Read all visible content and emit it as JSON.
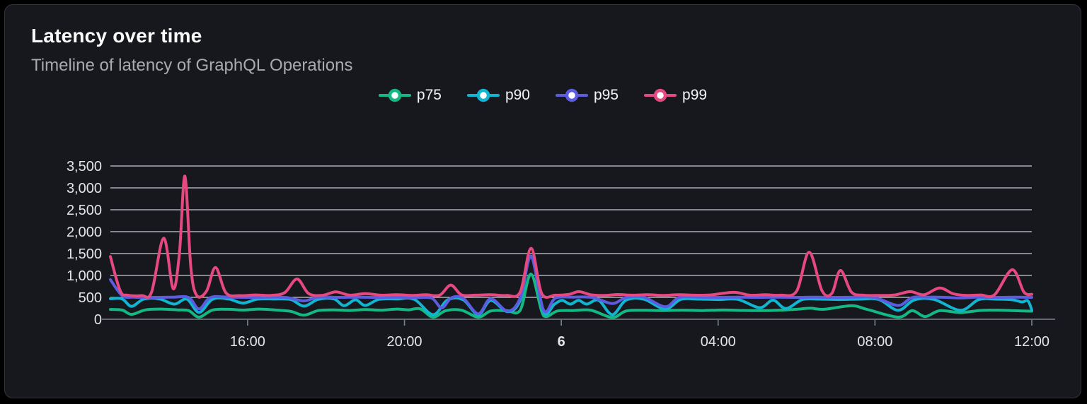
{
  "card": {
    "title": "Latency over time",
    "subtitle": "Timeline of latency of GraphQL Operations"
  },
  "colors": {
    "page_background": "#000000",
    "card_background": "#16181d",
    "card_border": "#32353b",
    "title_text": "#fafafa",
    "subtitle_text": "#a9abb1",
    "axis_label_text": "#e3e5e9",
    "gridline": "#c9cdd5",
    "axis_line": "#7e838b",
    "legend_marker_fill": "#ffffff",
    "series": {
      "p75": "#14b882",
      "p90": "#10b5d2",
      "p95": "#5c5ce0",
      "p99": "#e64980"
    }
  },
  "chart_data": {
    "type": "line",
    "title": "Latency over time",
    "subtitle": "Timeline of latency of GraphQL Operations",
    "xlabel": "",
    "ylabel": "",
    "ylim": [
      0,
      3500
    ],
    "yticks": [
      0,
      500,
      1000,
      1500,
      2000,
      2500,
      3000,
      3500
    ],
    "ytick_labels": [
      "0",
      "500",
      "1,000",
      "1,500",
      "2,000",
      "2,500",
      "3,000",
      "3,500"
    ],
    "grid": "horizontal",
    "legend_position": "top-center",
    "x_axis": {
      "unit": "hours-from-start (start ≈ 12:30 day 5)",
      "start": 0,
      "end": 23.5,
      "ticks": [
        {
          "t": 3.5,
          "label": "16:00",
          "bold": false
        },
        {
          "t": 7.5,
          "label": "20:00",
          "bold": false
        },
        {
          "t": 11.5,
          "label": "6",
          "bold": true
        },
        {
          "t": 15.5,
          "label": "04:00",
          "bold": false
        },
        {
          "t": 19.5,
          "label": "08:00",
          "bold": false
        },
        {
          "t": 23.5,
          "label": "12:00",
          "bold": false
        }
      ]
    },
    "series": [
      {
        "name": "p75",
        "color_key": "p75",
        "points": [
          [
            0,
            225
          ],
          [
            0.3,
            210
          ],
          [
            0.54,
            112
          ],
          [
            0.9,
            215
          ],
          [
            1.3,
            232
          ],
          [
            1.7,
            215
          ],
          [
            2.0,
            195
          ],
          [
            2.26,
            48
          ],
          [
            2.6,
            208
          ],
          [
            3.0,
            228
          ],
          [
            3.4,
            210
          ],
          [
            3.8,
            232
          ],
          [
            4.2,
            212
          ],
          [
            4.6,
            180
          ],
          [
            4.94,
            92
          ],
          [
            5.3,
            198
          ],
          [
            5.7,
            215
          ],
          [
            6.1,
            200
          ],
          [
            6.5,
            222
          ],
          [
            6.9,
            208
          ],
          [
            7.3,
            232
          ],
          [
            7.6,
            215
          ],
          [
            7.9,
            238
          ],
          [
            8.23,
            48
          ],
          [
            8.55,
            195
          ],
          [
            8.95,
            208
          ],
          [
            9.38,
            48
          ],
          [
            9.7,
            188
          ],
          [
            10.1,
            198
          ],
          [
            10.45,
            205
          ],
          [
            10.73,
            1030
          ],
          [
            11.05,
            78
          ],
          [
            11.4,
            188
          ],
          [
            11.8,
            198
          ],
          [
            12.25,
            208
          ],
          [
            12.8,
            42
          ],
          [
            13.15,
            188
          ],
          [
            13.6,
            205
          ],
          [
            14.1,
            198
          ],
          [
            14.6,
            208
          ],
          [
            15.1,
            198
          ],
          [
            15.6,
            212
          ],
          [
            16.1,
            202
          ],
          [
            16.6,
            198
          ],
          [
            17.1,
            208
          ],
          [
            17.5,
            228
          ],
          [
            17.85,
            252
          ],
          [
            18.2,
            228
          ],
          [
            18.9,
            308
          ],
          [
            19.3,
            225
          ],
          [
            20.09,
            48
          ],
          [
            20.45,
            195
          ],
          [
            20.78,
            62
          ],
          [
            21.15,
            195
          ],
          [
            21.68,
            152
          ],
          [
            22.15,
            198
          ],
          [
            22.6,
            208
          ],
          [
            23.0,
            198
          ],
          [
            23.3,
            188
          ],
          [
            23.5,
            185
          ]
        ]
      },
      {
        "name": "p90",
        "color_key": "p90",
        "points": [
          [
            0,
            470
          ],
          [
            0.3,
            465
          ],
          [
            0.54,
            295
          ],
          [
            0.85,
            460
          ],
          [
            1.25,
            465
          ],
          [
            1.63,
            345
          ],
          [
            1.95,
            460
          ],
          [
            2.26,
            155
          ],
          [
            2.6,
            455
          ],
          [
            3.0,
            465
          ],
          [
            3.38,
            370
          ],
          [
            3.75,
            460
          ],
          [
            4.2,
            465
          ],
          [
            4.6,
            450
          ],
          [
            4.94,
            300
          ],
          [
            5.3,
            455
          ],
          [
            5.7,
            465
          ],
          [
            5.96,
            310
          ],
          [
            6.25,
            445
          ],
          [
            6.5,
            315
          ],
          [
            6.85,
            455
          ],
          [
            7.3,
            465
          ],
          [
            7.75,
            455
          ],
          [
            8.23,
            105
          ],
          [
            8.6,
            440
          ],
          [
            9.0,
            445
          ],
          [
            9.38,
            105
          ],
          [
            9.7,
            430
          ],
          [
            10.13,
            175
          ],
          [
            10.45,
            430
          ],
          [
            10.73,
            1440
          ],
          [
            11.05,
            155
          ],
          [
            11.32,
            340
          ],
          [
            11.52,
            430
          ],
          [
            11.73,
            345
          ],
          [
            11.94,
            430
          ],
          [
            12.15,
            345
          ],
          [
            12.45,
            435
          ],
          [
            12.8,
            105
          ],
          [
            13.15,
            435
          ],
          [
            13.6,
            460
          ],
          [
            14.15,
            235
          ],
          [
            14.55,
            455
          ],
          [
            15.0,
            460
          ],
          [
            15.5,
            450
          ],
          [
            16.0,
            455
          ],
          [
            16.56,
            265
          ],
          [
            16.9,
            435
          ],
          [
            17.23,
            245
          ],
          [
            17.65,
            450
          ],
          [
            18.1,
            460
          ],
          [
            18.6,
            450
          ],
          [
            19.1,
            460
          ],
          [
            19.6,
            450
          ],
          [
            20.09,
            205
          ],
          [
            20.5,
            440
          ],
          [
            21.0,
            455
          ],
          [
            21.68,
            205
          ],
          [
            22.15,
            450
          ],
          [
            22.6,
            460
          ],
          [
            23.0,
            445
          ],
          [
            23.25,
            395
          ],
          [
            23.4,
            420
          ],
          [
            23.5,
            210
          ]
        ]
      },
      {
        "name": "p95",
        "color_key": "p95",
        "points": [
          [
            0,
            905
          ],
          [
            0.3,
            540
          ],
          [
            0.6,
            505
          ],
          [
            1.1,
            500
          ],
          [
            1.6,
            505
          ],
          [
            2.0,
            495
          ],
          [
            2.26,
            235
          ],
          [
            2.55,
            495
          ],
          [
            3.0,
            505
          ],
          [
            3.5,
            500
          ],
          [
            4.0,
            505
          ],
          [
            4.5,
            495
          ],
          [
            4.94,
            420
          ],
          [
            5.3,
            505
          ],
          [
            5.8,
            500
          ],
          [
            6.3,
            505
          ],
          [
            6.8,
            500
          ],
          [
            7.3,
            505
          ],
          [
            7.8,
            495
          ],
          [
            8.2,
            480
          ],
          [
            8.45,
            260
          ],
          [
            8.7,
            490
          ],
          [
            9.0,
            480
          ],
          [
            9.38,
            125
          ],
          [
            9.7,
            470
          ],
          [
            10.13,
            185
          ],
          [
            10.45,
            480
          ],
          [
            10.73,
            1430
          ],
          [
            11.05,
            205
          ],
          [
            11.35,
            480
          ],
          [
            11.8,
            505
          ],
          [
            12.3,
            495
          ],
          [
            12.8,
            360
          ],
          [
            13.15,
            495
          ],
          [
            13.6,
            505
          ],
          [
            14.15,
            285
          ],
          [
            14.5,
            495
          ],
          [
            15.0,
            505
          ],
          [
            15.5,
            500
          ],
          [
            16.0,
            505
          ],
          [
            16.5,
            500
          ],
          [
            17.0,
            505
          ],
          [
            17.5,
            500
          ],
          [
            18.0,
            505
          ],
          [
            18.5,
            500
          ],
          [
            19.0,
            505
          ],
          [
            19.5,
            495
          ],
          [
            20.09,
            315
          ],
          [
            20.45,
            495
          ],
          [
            20.9,
            505
          ],
          [
            21.3,
            500
          ],
          [
            21.68,
            485
          ],
          [
            22.1,
            505
          ],
          [
            22.6,
            500
          ],
          [
            23.1,
            505
          ],
          [
            23.5,
            500
          ]
        ]
      },
      {
        "name": "p99",
        "color_key": "p99",
        "points": [
          [
            0,
            1430
          ],
          [
            0.25,
            650
          ],
          [
            0.45,
            550
          ],
          [
            0.8,
            540
          ],
          [
            1.05,
            620
          ],
          [
            1.36,
            1850
          ],
          [
            1.6,
            700
          ],
          [
            1.76,
            1500
          ],
          [
            1.9,
            3270
          ],
          [
            2.05,
            1200
          ],
          [
            2.2,
            545
          ],
          [
            2.45,
            640
          ],
          [
            2.68,
            1180
          ],
          [
            2.95,
            600
          ],
          [
            3.3,
            540
          ],
          [
            3.7,
            555
          ],
          [
            4.1,
            545
          ],
          [
            4.45,
            610
          ],
          [
            4.76,
            920
          ],
          [
            5.05,
            590
          ],
          [
            5.4,
            545
          ],
          [
            5.75,
            625
          ],
          [
            6.1,
            550
          ],
          [
            6.5,
            585
          ],
          [
            6.9,
            550
          ],
          [
            7.3,
            560
          ],
          [
            7.7,
            545
          ],
          [
            8.05,
            560
          ],
          [
            8.4,
            550
          ],
          [
            8.68,
            780
          ],
          [
            8.95,
            560
          ],
          [
            9.3,
            550
          ],
          [
            9.7,
            560
          ],
          [
            10.1,
            545
          ],
          [
            10.45,
            620
          ],
          [
            10.73,
            1620
          ],
          [
            11.0,
            590
          ],
          [
            11.35,
            550
          ],
          [
            11.7,
            570
          ],
          [
            11.95,
            630
          ],
          [
            12.25,
            560
          ],
          [
            12.6,
            545
          ],
          [
            12.95,
            565
          ],
          [
            13.3,
            550
          ],
          [
            13.7,
            560
          ],
          [
            14.1,
            545
          ],
          [
            14.5,
            560
          ],
          [
            14.9,
            550
          ],
          [
            15.3,
            555
          ],
          [
            15.9,
            615
          ],
          [
            16.3,
            550
          ],
          [
            16.7,
            560
          ],
          [
            17.1,
            550
          ],
          [
            17.5,
            640
          ],
          [
            17.82,
            1530
          ],
          [
            18.15,
            650
          ],
          [
            18.4,
            590
          ],
          [
            18.62,
            1115
          ],
          [
            18.9,
            620
          ],
          [
            19.2,
            550
          ],
          [
            19.6,
            545
          ],
          [
            20.0,
            555
          ],
          [
            20.4,
            630
          ],
          [
            20.75,
            560
          ],
          [
            21.15,
            715
          ],
          [
            21.5,
            580
          ],
          [
            21.85,
            545
          ],
          [
            22.2,
            555
          ],
          [
            22.55,
            560
          ],
          [
            23.0,
            1130
          ],
          [
            23.3,
            620
          ],
          [
            23.5,
            570
          ]
        ]
      }
    ]
  }
}
